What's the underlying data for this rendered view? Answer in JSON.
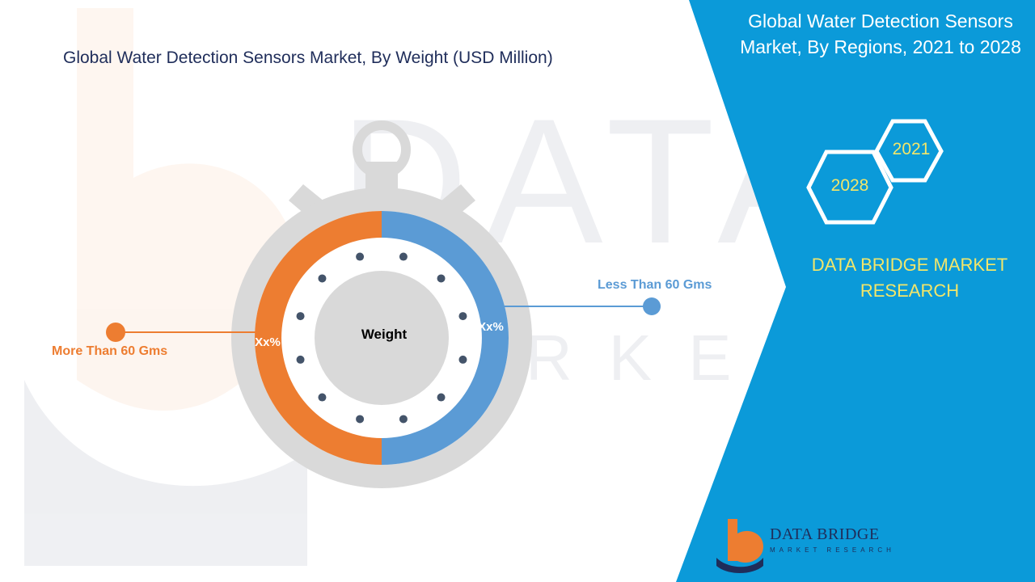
{
  "header": {
    "title": "Global Water Detection Sensors Market, By Weight (USD Million)"
  },
  "side_panel": {
    "title": "Global Water Detection Sensors Market, By Regions, 2021 to 2028",
    "years": [
      "2021",
      "2028"
    ],
    "brand": "DATA BRIDGE MARKET RESEARCH",
    "color": "#0b9ad9"
  },
  "logo": {
    "name": "DATA BRIDGE",
    "tagline": "MARKET RESEARCH"
  },
  "colors": {
    "less_than_60": "#5b9bd5",
    "more_than_60": "#ed7d31",
    "panel": "#0b9ad9",
    "title": "#1f2d5a"
  },
  "chart_data": {
    "type": "pie",
    "title": "Global Water Detection Sensors Market, By Weight (USD Million)",
    "center_label": "Weight",
    "categories": [
      "Less Than 60 Gms",
      "More Than 60 Gms"
    ],
    "values": [
      50,
      50
    ],
    "value_labels": [
      "Xx%",
      "Xx%"
    ],
    "colors": [
      "#5b9bd5",
      "#ed7d31"
    ]
  }
}
